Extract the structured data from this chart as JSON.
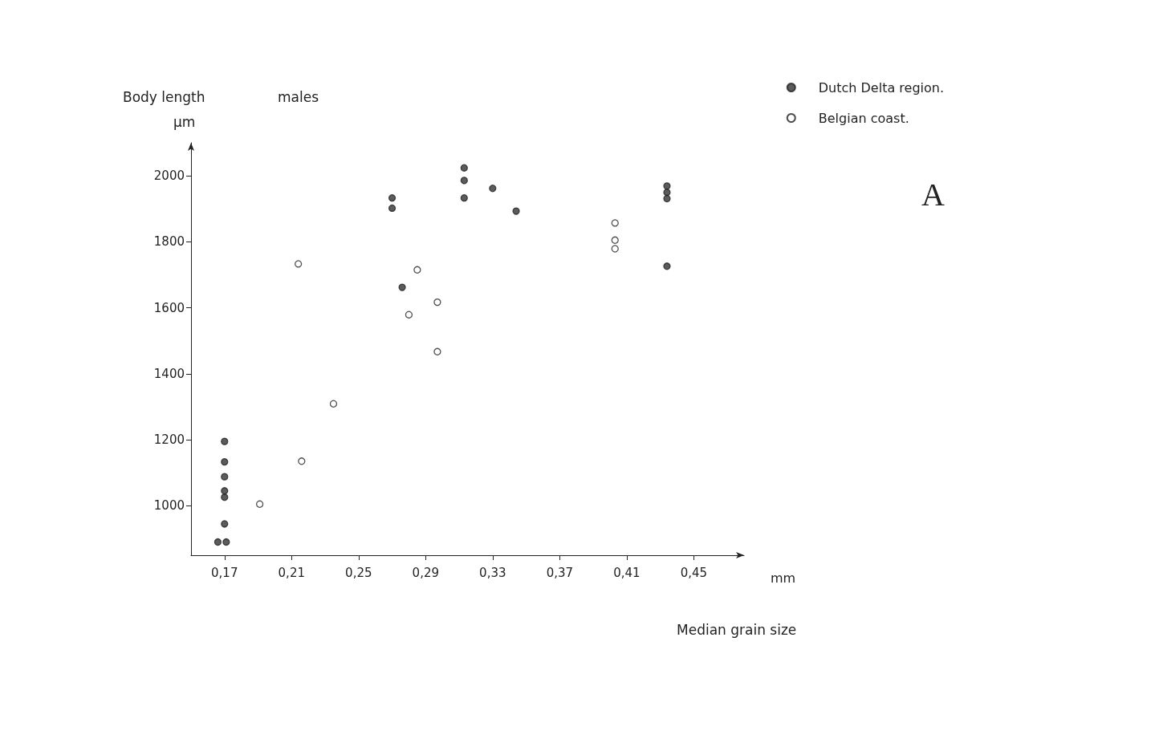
{
  "chart_data": {
    "type": "scatter",
    "subtitle": "males",
    "ylabel": "Body length\nµm",
    "xlabel": "Median grain size",
    "annotations": [
      "mm",
      "A"
    ],
    "legend": "top right",
    "marker": "circle",
    "grid": false,
    "xlim": [
      0.15,
      0.48
    ],
    "xticks": [
      {
        "value": 0.17,
        "label": "0,17"
      },
      {
        "value": 0.21,
        "label": "0,21"
      },
      {
        "value": 0.25,
        "label": "0,25"
      },
      {
        "value": 0.29,
        "label": "0,29"
      },
      {
        "value": 0.33,
        "label": "0,33"
      },
      {
        "value": 0.37,
        "label": "0,37"
      },
      {
        "value": 0.41,
        "label": "0,41"
      },
      {
        "value": 0.45,
        "label": "0,45"
      }
    ],
    "ylim": [
      850,
      2100
    ],
    "yticks": [
      1000,
      1200,
      1400,
      1600,
      1800,
      2000
    ],
    "series": [
      {
        "name": "Dutch Delta region.",
        "color": "#333333",
        "x": [
          0.166,
          0.171,
          0.17,
          0.17,
          0.17,
          0.17,
          0.17,
          0.17,
          0.27,
          0.27,
          0.276,
          0.313,
          0.313,
          0.313,
          0.33,
          0.344,
          0.434,
          0.434,
          0.434,
          0.434
        ],
        "values": [
          890,
          890,
          945,
          1026,
          1045,
          1088,
          1133,
          1195,
          1933,
          1902,
          1662,
          2024,
          1986,
          1933,
          1962,
          1893,
          1969,
          1950,
          1931,
          1726
        ]
      },
      {
        "name": "Belgian coast.",
        "color": "#ffffff",
        "x": [
          0.214,
          0.216,
          0.191,
          0.235,
          0.285,
          0.28,
          0.297,
          0.297,
          0.403,
          0.403,
          0.403
        ],
        "values": [
          1733,
          1135,
          1005,
          1309,
          1715,
          1579,
          1617,
          1467,
          1857,
          1805,
          1779
        ]
      }
    ]
  }
}
